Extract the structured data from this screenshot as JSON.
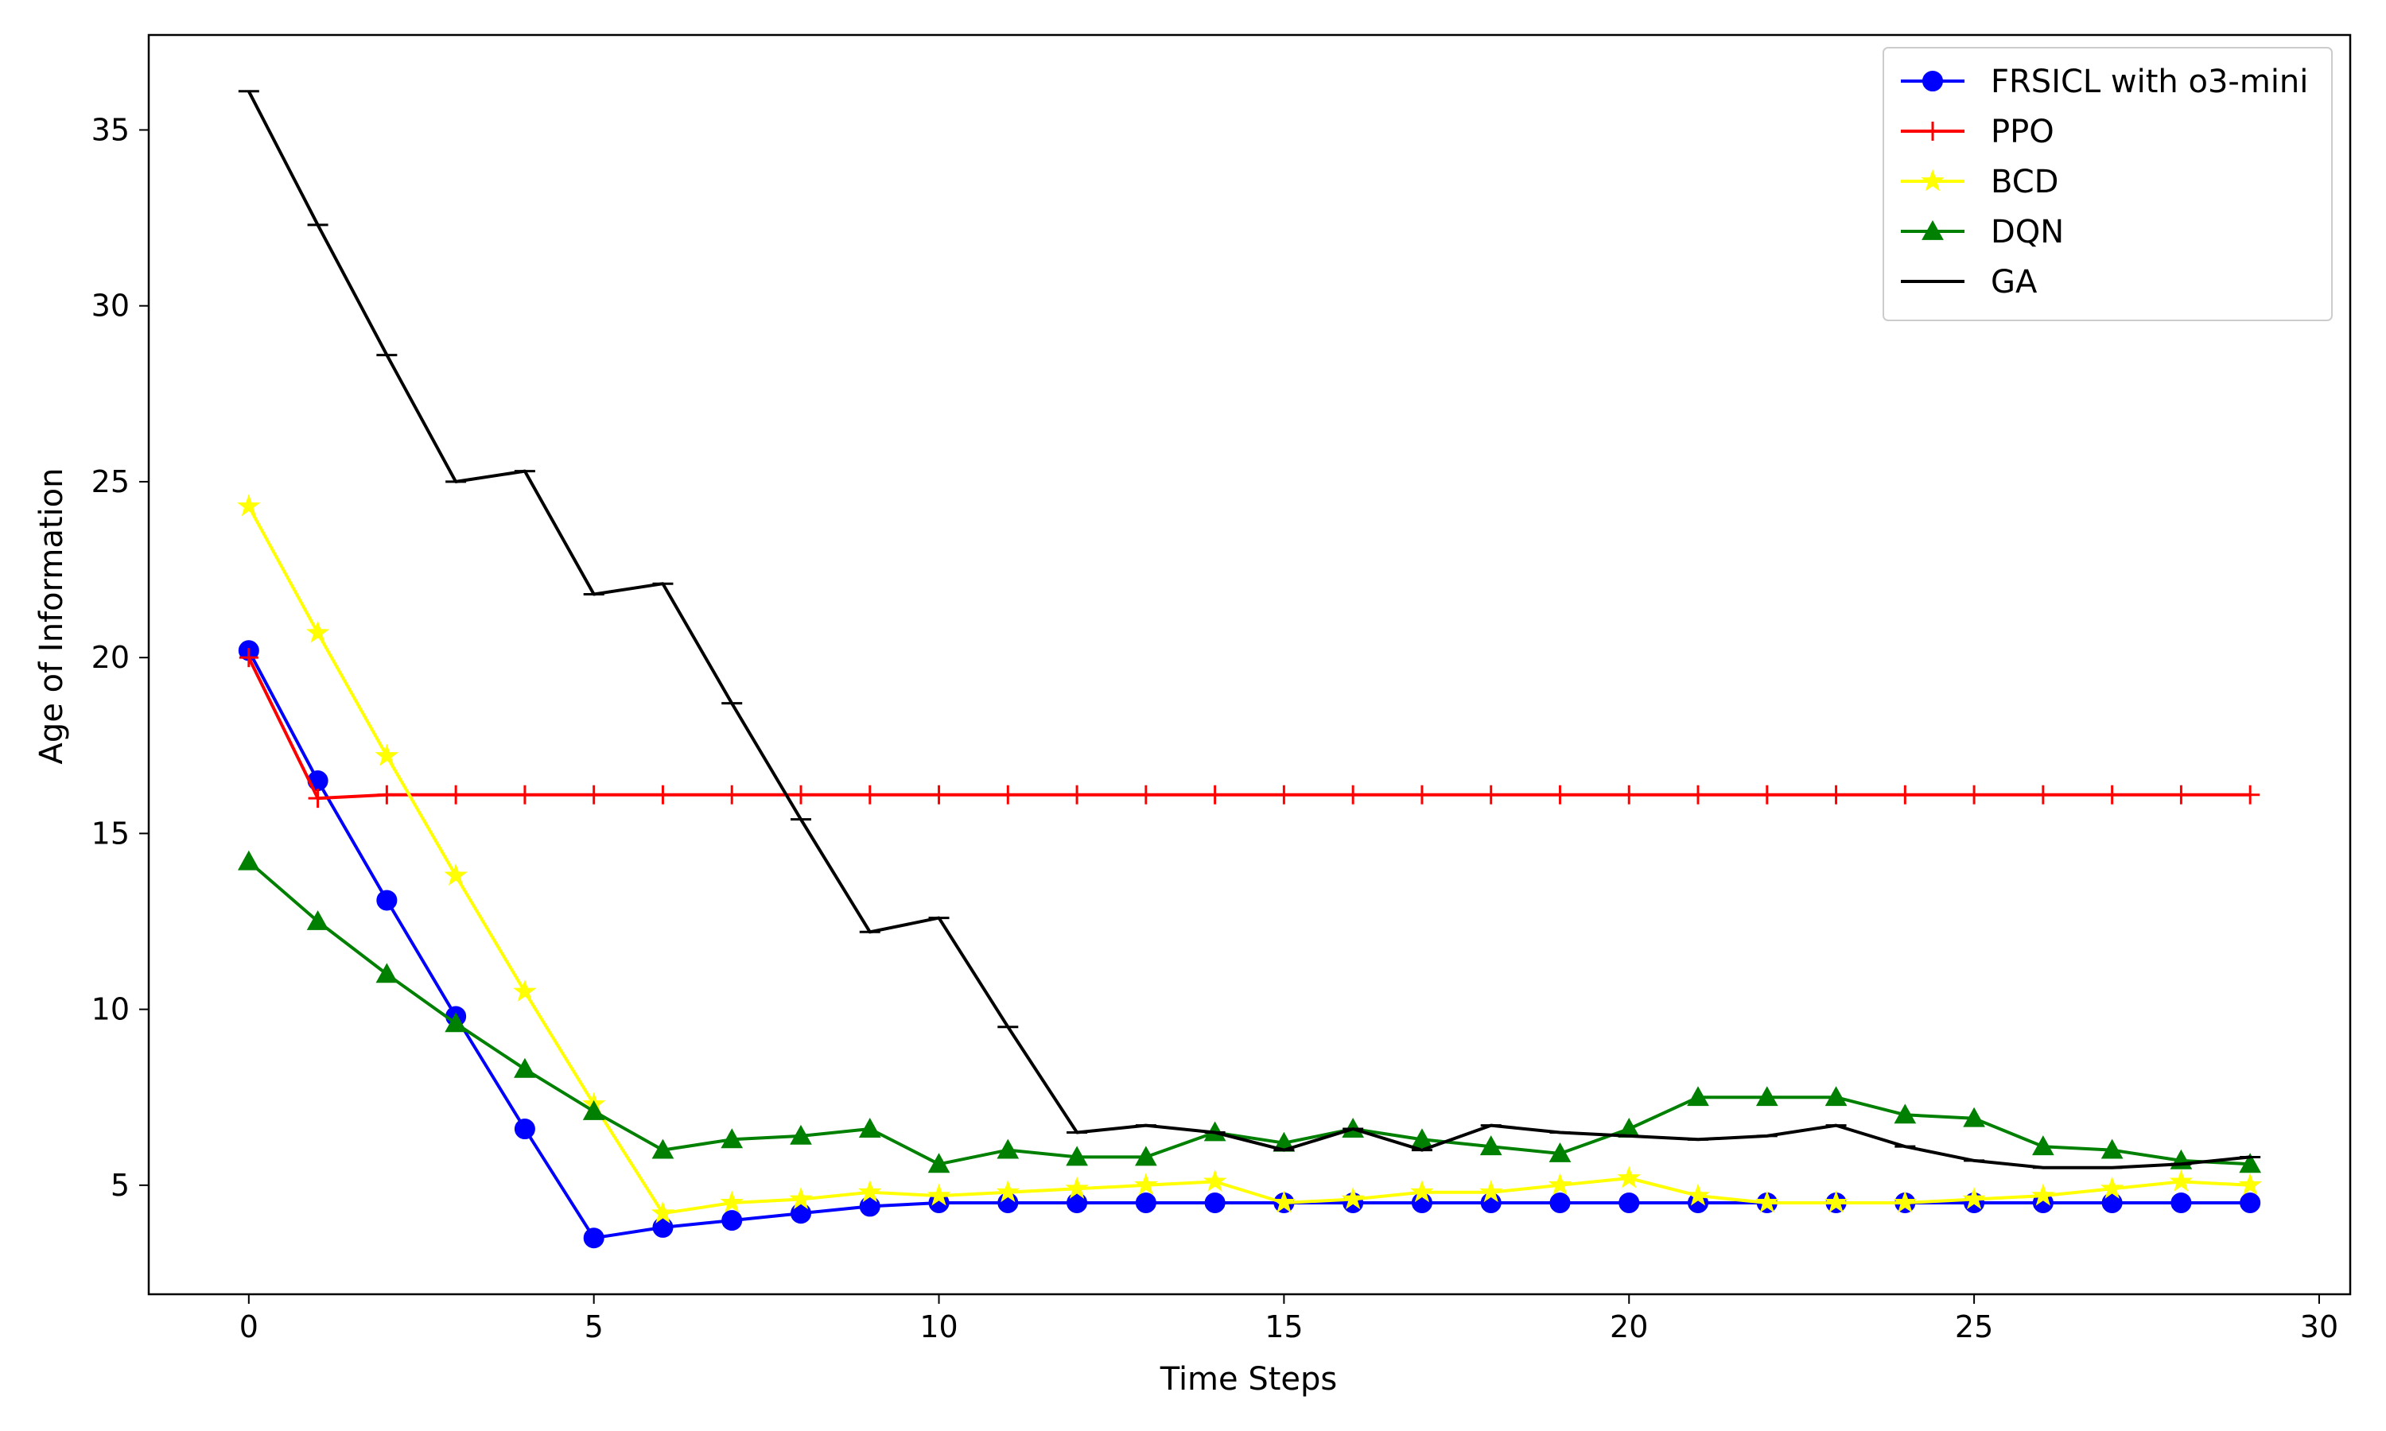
{
  "chart_data": {
    "type": "line",
    "title": "",
    "xlabel": "Time Steps",
    "ylabel": "Age of Information",
    "xlim": [
      -1.45,
      30.45
    ],
    "ylim": [
      1.9,
      37.7
    ],
    "xticks": [
      0,
      5,
      10,
      15,
      20,
      25,
      30
    ],
    "yticks": [
      5,
      10,
      15,
      20,
      25,
      30,
      35
    ],
    "grid": false,
    "legend_position": "top-right",
    "x": [
      0,
      1,
      2,
      3,
      4,
      5,
      6,
      7,
      8,
      9,
      10,
      11,
      12,
      13,
      14,
      15,
      16,
      17,
      18,
      19,
      20,
      21,
      22,
      23,
      24,
      25,
      26,
      27,
      28,
      29
    ],
    "series": [
      {
        "name": "FRSICL with o3-mini",
        "color": "#0000ff",
        "marker": "circle",
        "values": [
          20.2,
          16.5,
          13.1,
          9.8,
          6.6,
          3.5,
          3.8,
          4.0,
          4.2,
          4.4,
          4.5,
          4.5,
          4.5,
          4.5,
          4.5,
          4.5,
          4.5,
          4.5,
          4.5,
          4.5,
          4.5,
          4.5,
          4.5,
          4.5,
          4.5,
          4.5,
          4.5,
          4.5,
          4.5,
          4.5
        ]
      },
      {
        "name": "PPO",
        "color": "#ff0000",
        "marker": "plus",
        "values": [
          20.0,
          16.0,
          16.1,
          16.1,
          16.1,
          16.1,
          16.1,
          16.1,
          16.1,
          16.1,
          16.1,
          16.1,
          16.1,
          16.1,
          16.1,
          16.1,
          16.1,
          16.1,
          16.1,
          16.1,
          16.1,
          16.1,
          16.1,
          16.1,
          16.1,
          16.1,
          16.1,
          16.1,
          16.1,
          16.1
        ]
      },
      {
        "name": "BCD",
        "color": "#ffff00",
        "marker": "star",
        "values": [
          24.3,
          20.7,
          17.2,
          13.8,
          10.5,
          7.3,
          4.2,
          4.5,
          4.6,
          4.8,
          4.7,
          4.8,
          4.9,
          5.0,
          5.1,
          4.5,
          4.6,
          4.8,
          4.8,
          5.0,
          5.2,
          4.7,
          4.5,
          4.5,
          4.5,
          4.6,
          4.7,
          4.9,
          5.1,
          5.0
        ]
      },
      {
        "name": "DQN",
        "color": "#008000",
        "marker": "triangle",
        "values": [
          14.2,
          12.5,
          11.0,
          9.6,
          8.3,
          7.1,
          6.0,
          6.3,
          6.4,
          6.6,
          5.6,
          6.0,
          5.8,
          5.8,
          6.5,
          6.2,
          6.6,
          6.3,
          6.1,
          5.9,
          6.6,
          7.5,
          7.5,
          7.5,
          7.0,
          6.9,
          6.1,
          6.0,
          5.7,
          5.6
        ]
      },
      {
        "name": "GA",
        "color": "#000000",
        "marker": "none",
        "values": [
          36.1,
          32.3,
          28.6,
          25.0,
          25.3,
          21.8,
          22.1,
          18.7,
          15.4,
          12.2,
          12.6,
          9.5,
          6.5,
          6.7,
          6.5,
          6.0,
          6.6,
          6.0,
          6.7,
          6.5,
          6.4,
          6.3,
          6.4,
          6.7,
          6.1,
          5.7,
          5.5,
          5.5,
          5.6,
          5.8
        ]
      }
    ]
  }
}
